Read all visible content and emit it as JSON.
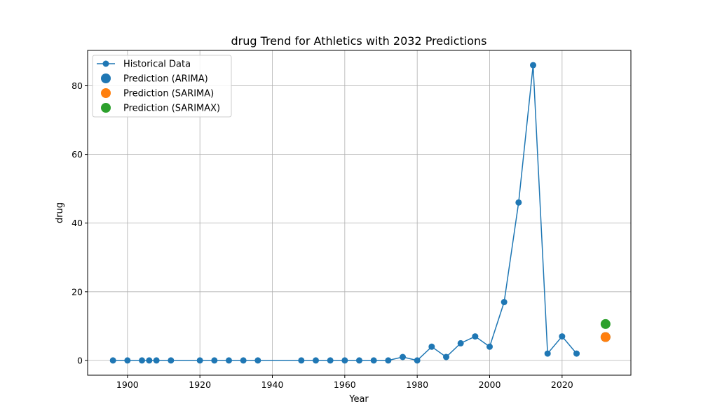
{
  "chart_data": {
    "type": "line",
    "title": "drug Trend for Athletics with 2032 Predictions",
    "xlabel": "Year",
    "ylabel": "drug",
    "xlim": [
      1889,
      2039
    ],
    "ylim": [
      -4.3,
      90.3
    ],
    "xticks": [
      1900,
      1920,
      1940,
      1960,
      1980,
      2000,
      2020
    ],
    "yticks": [
      0,
      20,
      40,
      60,
      80
    ],
    "grid": true,
    "legend_position": "top-left",
    "series": [
      {
        "name": "Historical Data",
        "kind": "line-marker",
        "color": "#1f77b4",
        "x": [
          1896,
          1900,
          1904,
          1906,
          1908,
          1912,
          1920,
          1924,
          1928,
          1932,
          1936,
          1948,
          1952,
          1956,
          1960,
          1964,
          1968,
          1972,
          1976,
          1980,
          1984,
          1988,
          1992,
          1996,
          2000,
          2004,
          2008,
          2012,
          2016,
          2020,
          2024
        ],
        "y": [
          0,
          0,
          0,
          0,
          0,
          0,
          0,
          0,
          0,
          0,
          0,
          0,
          0,
          0,
          0,
          0,
          0,
          0,
          1,
          0,
          4,
          1,
          5,
          7,
          4,
          17,
          46,
          86,
          2,
          7,
          2
        ]
      },
      {
        "name": "Prediction (ARIMA)",
        "kind": "point",
        "color": "#1f77b4",
        "x": [
          2032
        ],
        "y": [
          6.8
        ]
      },
      {
        "name": "Prediction (SARIMA)",
        "kind": "point",
        "color": "#ff7f0e",
        "x": [
          2032
        ],
        "y": [
          6.8
        ]
      },
      {
        "name": "Prediction (SARIMAX)",
        "kind": "point",
        "color": "#2ca02c",
        "x": [
          2032
        ],
        "y": [
          10.6
        ]
      }
    ]
  }
}
